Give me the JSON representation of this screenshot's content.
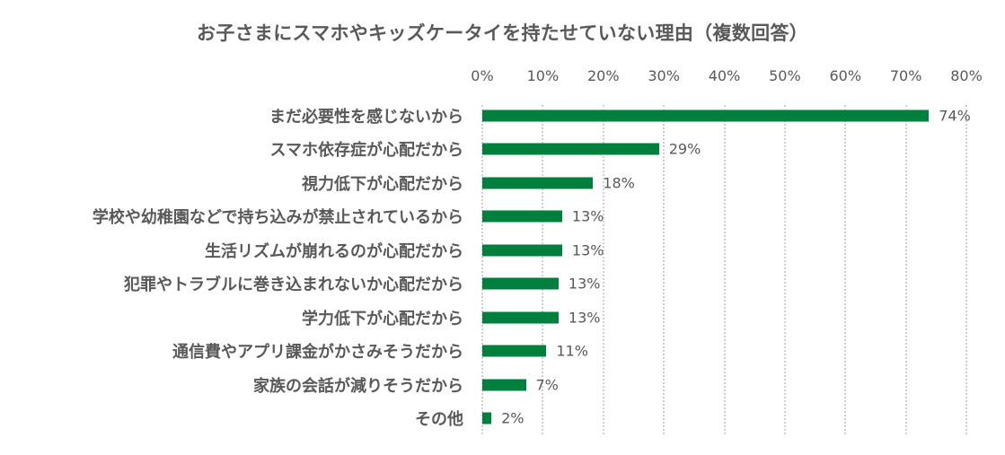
{
  "chart_data": {
    "type": "bar",
    "orientation": "horizontal",
    "title": "お子さまにスマホやキッズケータイを持たせていない理由（複数回答）",
    "xlabel": "",
    "ylabel": "",
    "xlim": [
      0,
      80
    ],
    "x_ticks": [
      "0%",
      "10%",
      "20%",
      "30%",
      "40%",
      "50%",
      "60%",
      "70%",
      "80%"
    ],
    "grid": true,
    "legend": null,
    "bar_color": "#007f3d",
    "categories": [
      "まだ必要性を感じないから",
      "スマホ依存症が心配だから",
      "視力低下が心配だから",
      "学校や幼稚園などで持ち込みが禁止されているから",
      "生活リズムが崩れるのが心配だから",
      "犯罪やトラブルに巻き込まれないか心配だから",
      "学力低下が心配だから",
      "通信費やアプリ課金がかさみそうだから",
      "家族の会話が減りそうだから",
      "その他"
    ],
    "values": [
      74,
      29,
      18,
      13,
      13,
      13,
      13,
      11,
      7,
      2
    ],
    "value_labels": [
      "74%",
      "29%",
      "18%",
      "13%",
      "13%",
      "13%",
      "13%",
      "11%",
      "7%",
      "2%"
    ],
    "exact_bar_values": [
      73.8,
      29.2,
      18.3,
      13.2,
      13.2,
      12.6,
      12.6,
      10.6,
      7.2,
      1.5
    ]
  }
}
